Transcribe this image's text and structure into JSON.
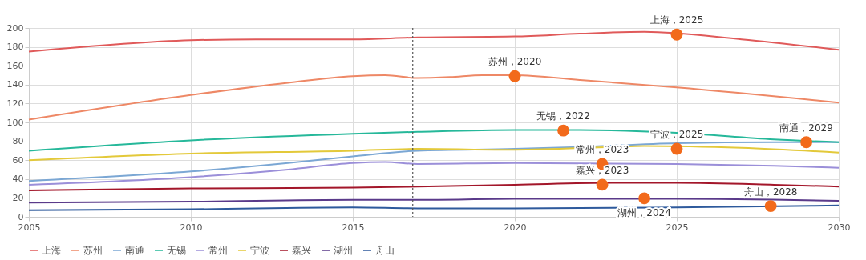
{
  "chart_data": {
    "type": "line",
    "xlim": [
      2005,
      2030
    ],
    "xticks": [
      2005,
      2010,
      2015,
      2020,
      2025,
      2030
    ],
    "ylim": [
      0,
      200
    ],
    "yticks": [
      0,
      20,
      40,
      60,
      80,
      100,
      120,
      140,
      160,
      180,
      200
    ],
    "grid": true,
    "legend": "bottom",
    "marker": "none",
    "line_style": "solid",
    "series": [
      {
        "name": "上海",
        "color": "#e05a5a",
        "x": [
          2005,
          2010,
          2012,
          2015,
          2017,
          2020,
          2022,
          2024,
          2027,
          2030
        ],
        "values": [
          175,
          187,
          188,
          188,
          190,
          191,
          194,
          196,
          188,
          177
        ]
      },
      {
        "name": "苏州",
        "color": "#ee8866",
        "x": [
          2005,
          2010,
          2013,
          2015,
          2016,
          2017,
          2018,
          2019,
          2020,
          2022,
          2025,
          2030
        ],
        "values": [
          103,
          129,
          142,
          149,
          150,
          147,
          148,
          150,
          150,
          145,
          137,
          121
        ]
      },
      {
        "name": "南通",
        "color": "#7ba7d4",
        "x": [
          2005,
          2010,
          2013,
          2015,
          2017,
          2020,
          2022,
          2025,
          2028,
          2030
        ],
        "values": [
          38,
          48,
          57,
          64,
          70,
          72,
          74,
          78,
          79,
          79
        ]
      },
      {
        "name": "无锡",
        "color": "#26b89a",
        "x": [
          2005,
          2010,
          2015,
          2017,
          2020,
          2022,
          2025,
          2028,
          2030
        ],
        "values": [
          70,
          81,
          88,
          90,
          92,
          92,
          89,
          82,
          79
        ]
      },
      {
        "name": "常州",
        "color": "#9b8fd9",
        "x": [
          2005,
          2010,
          2013,
          2015,
          2016,
          2017,
          2020,
          2025,
          2028,
          2030
        ],
        "values": [
          34,
          42,
          50,
          57,
          58,
          56,
          57,
          56,
          54,
          52
        ]
      },
      {
        "name": "宁波",
        "color": "#e3c93a",
        "x": [
          2005,
          2010,
          2015,
          2017,
          2020,
          2023,
          2024,
          2027,
          2030
        ],
        "values": [
          60,
          67,
          70,
          72,
          71,
          74,
          75,
          73,
          68
        ]
      },
      {
        "name": "嘉兴",
        "color": "#a3162a",
        "x": [
          2005,
          2010,
          2015,
          2017,
          2020,
          2023,
          2025,
          2028,
          2030
        ],
        "values": [
          28,
          30,
          31,
          32,
          34,
          36,
          36,
          34,
          32
        ]
      },
      {
        "name": "湖州",
        "color": "#5a3a8a",
        "x": [
          2005,
          2010,
          2015,
          2017,
          2020,
          2025,
          2030
        ],
        "values": [
          15,
          16,
          18,
          18,
          19,
          19,
          17
        ]
      },
      {
        "name": "舟山",
        "color": "#2e5a9c",
        "x": [
          2005,
          2010,
          2015,
          2017,
          2020,
          2025,
          2030
        ],
        "values": [
          7,
          8,
          10,
          9,
          9,
          10,
          12
        ]
      }
    ],
    "ref_lines": [
      {
        "axis": "x",
        "value": 2016.85,
        "label": null,
        "color": "#555555",
        "line_style": "dotted"
      }
    ],
    "annotations": [
      {
        "text": "上海，2025",
        "x": 2025,
        "y": 193
      },
      {
        "text": "苏州，2020",
        "x": 2020,
        "y": 149
      },
      {
        "text": "无锡，2022",
        "x": 2021.5,
        "y": 91.4
      },
      {
        "text": "宁波，2025",
        "x": 2025,
        "y": 72
      },
      {
        "text": "南通，2029",
        "x": 2029,
        "y": 79
      },
      {
        "text": "常州，2023",
        "x": 2022.7,
        "y": 56
      },
      {
        "text": "嘉兴，2023",
        "x": 2022.7,
        "y": 34
      },
      {
        "text": "湖州，2024",
        "x": 2024,
        "y": 19.6
      },
      {
        "text": "舟山，2028",
        "x": 2027.9,
        "y": 11.4
      }
    ]
  }
}
